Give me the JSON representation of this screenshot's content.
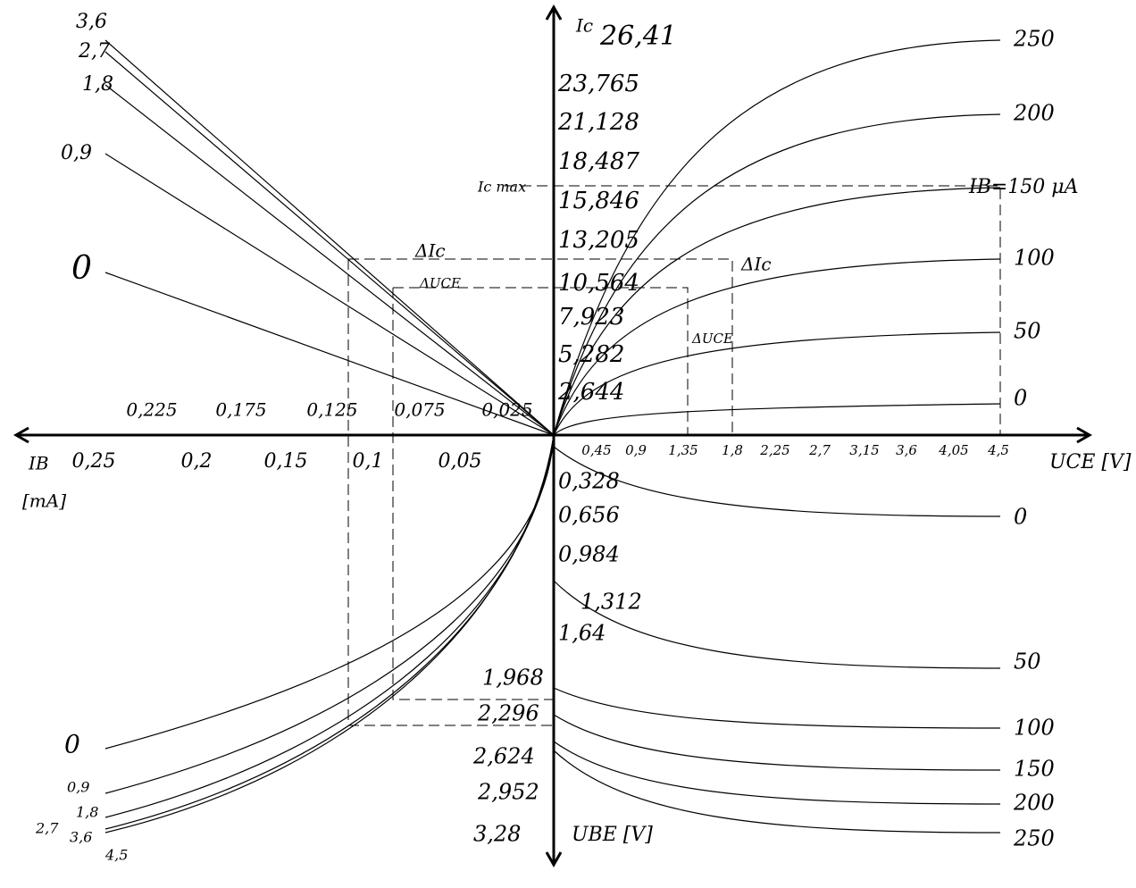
{
  "axes": {
    "ic_label": "Ic",
    "ic_top": "26,41",
    "ic_ticks": [
      "23,765",
      "21,128",
      "18,487",
      "15,846",
      "13,205",
      "10,564",
      "7,923",
      "5,282",
      "2,644"
    ],
    "ic_max_label": "Ic max",
    "ib_annotation": "IB=150 μA",
    "uce_ticks": [
      "0,45",
      "0,9",
      "1,35",
      "1,8",
      "2,25",
      "2,7",
      "3,15",
      "3,6",
      "4,05",
      "4,5"
    ],
    "uce_label": "UCE [V]",
    "ib_ticks_lower": [
      "0,25",
      "0,2",
      "0,15",
      "0,1",
      "0,05"
    ],
    "ib_ticks_upper": [
      "0,225",
      "0,175",
      "0,125",
      "0,075",
      "0,025"
    ],
    "ib_label": "IB",
    "ib_unit": "[mA]",
    "ube_ticks": [
      "0,328",
      "0,656",
      "0,984",
      "1,312",
      "1,64",
      "1,968",
      "2,296",
      "2,624",
      "2,952",
      "3,28"
    ],
    "ube_label": "UBE [V]"
  },
  "curve_labels": {
    "output": [
      "250",
      "200",
      "100",
      "50",
      "0"
    ],
    "transfer": [
      "3,6",
      "2,7",
      "1,8",
      "0,9",
      "0"
    ],
    "input_right": [
      "0",
      "50",
      "100",
      "150",
      "200",
      "250"
    ],
    "input_left": [
      "0",
      "0,9",
      "1,8",
      "2,7",
      "3,6",
      "4,5"
    ]
  },
  "annotations": [
    "ΔIc",
    "ΔUCE",
    "ΔIc",
    "ΔUCE"
  ]
}
